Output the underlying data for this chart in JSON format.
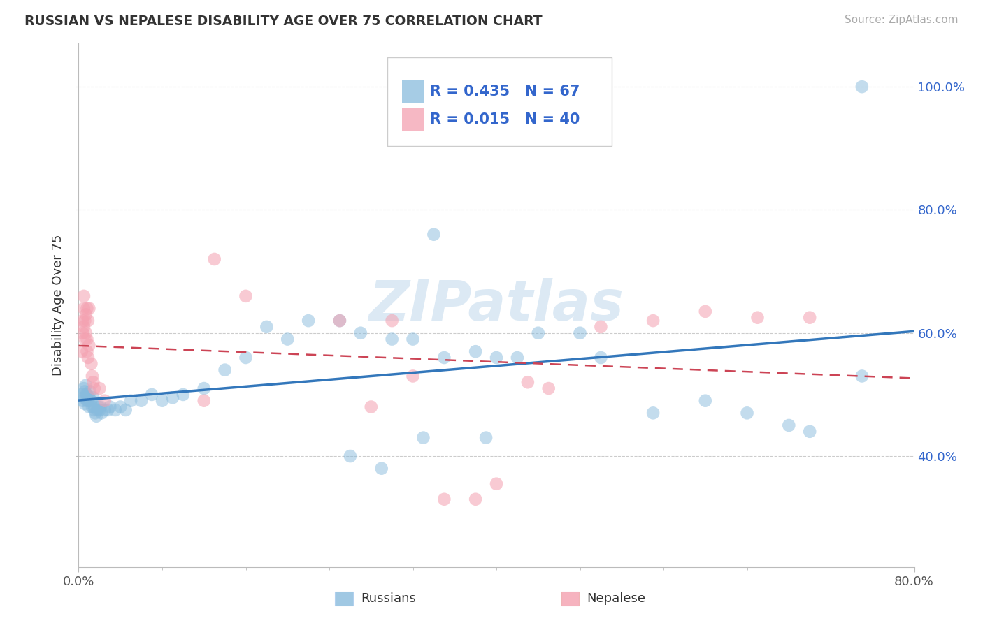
{
  "title": "RUSSIAN VS NEPALESE DISABILITY AGE OVER 75 CORRELATION CHART",
  "source": "Source: ZipAtlas.com",
  "ylabel": "Disability Age Over 75",
  "xlim": [
    0.0,
    0.8
  ],
  "ylim": [
    0.22,
    1.07
  ],
  "ytick_labels": [
    "40.0%",
    "60.0%",
    "80.0%",
    "100.0%"
  ],
  "ytick_values": [
    0.4,
    0.6,
    0.8,
    1.0
  ],
  "xtick_labels": [
    "0.0%",
    "80.0%"
  ],
  "xtick_values": [
    0.0,
    0.8
  ],
  "legend_R1_val": "0.435",
  "legend_N1_val": "67",
  "legend_R2_val": "0.015",
  "legend_N2_val": "40",
  "blue_color": "#88bbdd",
  "pink_color": "#f4a0b0",
  "blue_line_color": "#3377bb",
  "pink_line_color": "#cc4455",
  "legend_text_color": "#3366cc",
  "watermark": "ZIPatlas",
  "russians_x": [
    0.003,
    0.004,
    0.005,
    0.005,
    0.006,
    0.006,
    0.007,
    0.007,
    0.008,
    0.008,
    0.009,
    0.01,
    0.01,
    0.011,
    0.012,
    0.013,
    0.014,
    0.015,
    0.015,
    0.016,
    0.017,
    0.018,
    0.019,
    0.02,
    0.021,
    0.022,
    0.025,
    0.028,
    0.03,
    0.035,
    0.04,
    0.045,
    0.05,
    0.06,
    0.07,
    0.08,
    0.09,
    0.1,
    0.12,
    0.14,
    0.16,
    0.18,
    0.2,
    0.22,
    0.25,
    0.27,
    0.3,
    0.32,
    0.35,
    0.38,
    0.4,
    0.42,
    0.44,
    0.48,
    0.5,
    0.55,
    0.6,
    0.64,
    0.68,
    0.7,
    0.33,
    0.26,
    0.29,
    0.39,
    0.75,
    0.75,
    0.34
  ],
  "russians_y": [
    0.5,
    0.49,
    0.51,
    0.495,
    0.505,
    0.485,
    0.5,
    0.515,
    0.49,
    0.5,
    0.49,
    0.495,
    0.48,
    0.505,
    0.49,
    0.48,
    0.495,
    0.48,
    0.475,
    0.47,
    0.465,
    0.475,
    0.48,
    0.475,
    0.48,
    0.47,
    0.475,
    0.475,
    0.48,
    0.475,
    0.48,
    0.475,
    0.49,
    0.49,
    0.5,
    0.49,
    0.495,
    0.5,
    0.51,
    0.54,
    0.56,
    0.61,
    0.59,
    0.62,
    0.62,
    0.6,
    0.59,
    0.59,
    0.56,
    0.57,
    0.56,
    0.56,
    0.6,
    0.6,
    0.56,
    0.47,
    0.49,
    0.47,
    0.45,
    0.44,
    0.43,
    0.4,
    0.38,
    0.43,
    1.0,
    0.53,
    0.76
  ],
  "nepalese_x": [
    0.003,
    0.004,
    0.004,
    0.005,
    0.005,
    0.005,
    0.006,
    0.006,
    0.007,
    0.007,
    0.008,
    0.008,
    0.008,
    0.009,
    0.009,
    0.01,
    0.01,
    0.012,
    0.013,
    0.014,
    0.015,
    0.02,
    0.025,
    0.12,
    0.13,
    0.16,
    0.25,
    0.28,
    0.3,
    0.32,
    0.35,
    0.38,
    0.4,
    0.43,
    0.45,
    0.5,
    0.55,
    0.6,
    0.65,
    0.7
  ],
  "nepalese_y": [
    0.57,
    0.6,
    0.62,
    0.61,
    0.64,
    0.66,
    0.59,
    0.62,
    0.6,
    0.63,
    0.59,
    0.57,
    0.64,
    0.56,
    0.62,
    0.58,
    0.64,
    0.55,
    0.53,
    0.52,
    0.51,
    0.51,
    0.49,
    0.49,
    0.72,
    0.66,
    0.62,
    0.48,
    0.62,
    0.53,
    0.33,
    0.33,
    0.355,
    0.52,
    0.51,
    0.61,
    0.62,
    0.635,
    0.625,
    0.625
  ]
}
